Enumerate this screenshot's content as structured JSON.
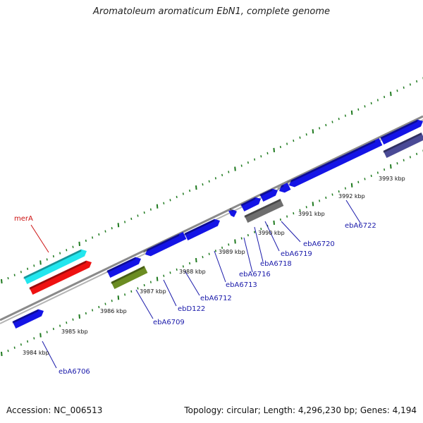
{
  "title": "Aromatoleum aromaticum EbN1, complete genome",
  "footer": {
    "accession": "Accession: NC_006513",
    "summary": "Topology: circular; Length: 4,296,230 bp; Genes: 4,194"
  },
  "scale_labels": [
    "3984 kbp",
    "3985 kbp",
    "3986 kbp",
    "3987 kbp",
    "3988 kbp",
    "3989 kbp",
    "3990 kbp",
    "3991 kbp",
    "3992 kbp",
    "3993 kbp"
  ],
  "gene_labels": [
    "merA",
    "ebA6706",
    "ebA6709",
    "ebD122",
    "ebA6712",
    "ebA6713",
    "ebA6716",
    "ebA6718",
    "ebA6719",
    "ebA6720",
    "ebA6722"
  ],
  "colors": {
    "backbone": "#8a8a8a",
    "ticks": "#1f7a1f",
    "gene_blue": "#1414e6",
    "gene_cyan": "#22e6ee",
    "gene_red": "#ee1111",
    "gene_olive": "#6b8c22",
    "gene_gray": "#6e6e6e",
    "gene_slate": "#4a4a96",
    "label_blue": "#1a1aaa",
    "label_red": "#cc1111"
  }
}
